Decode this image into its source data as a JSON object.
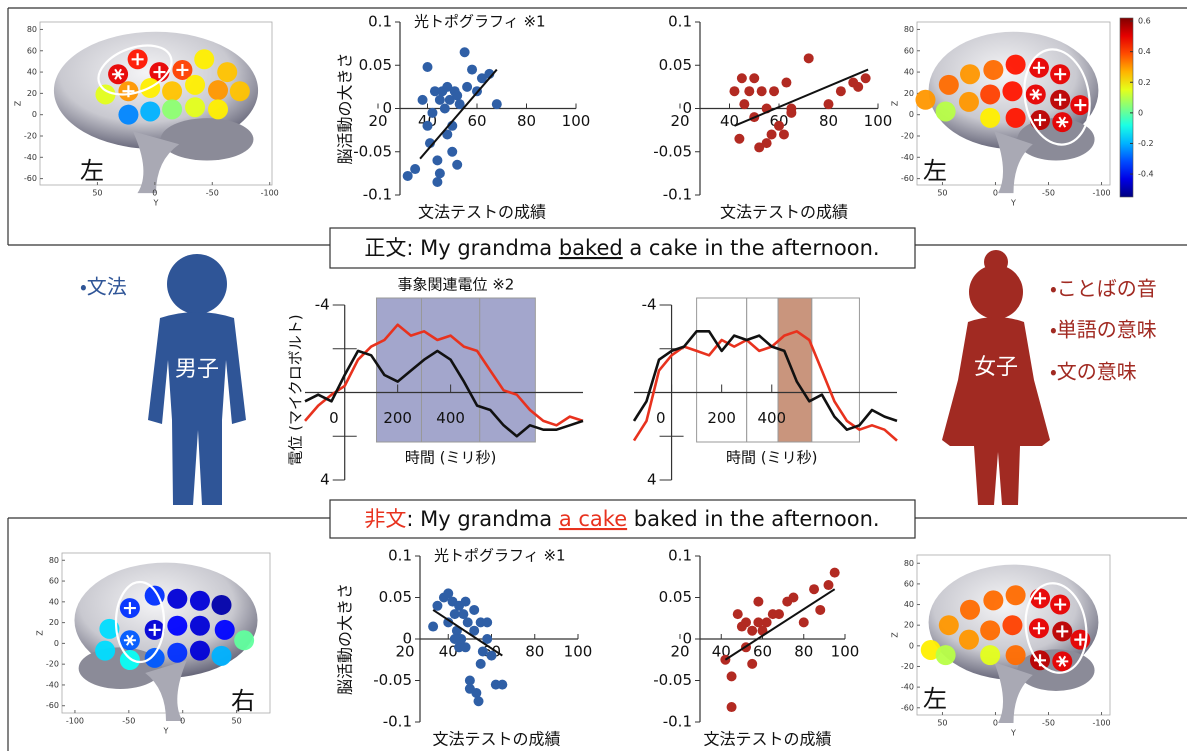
{
  "chart_data": [
    {
      "type": "brainmap",
      "xlabel": "Y",
      "ylabel": "Z",
      "side_label": "左",
      "xlim": [
        100,
        -102
      ],
      "ylim": [
        -66,
        87
      ],
      "xticks": [
        50,
        0,
        -50,
        -100
      ],
      "yticks": [
        80,
        60,
        40,
        20,
        0,
        -20,
        -40,
        -60
      ],
      "clim": [
        -0.55,
        0.62
      ],
      "x": [
        32,
        15,
        -4,
        -24,
        -43,
        -63,
        43,
        23,
        4,
        -15,
        -35,
        -55,
        -74,
        23,
        4,
        -15,
        -35,
        -55
      ],
      "y": [
        38,
        52,
        40,
        42,
        52,
        40,
        19,
        22,
        25,
        22,
        28,
        23,
        22,
        0,
        3,
        5,
        7,
        5
      ],
      "values": [
        0.5,
        0.45,
        0.5,
        0.4,
        0.2,
        0.25,
        0.15,
        0.3,
        0.2,
        0.25,
        0.2,
        0.3,
        0.25,
        -0.25,
        -0.2,
        0.05,
        0.15,
        0.2
      ]
    },
    {
      "type": "scatter",
      "title": "光トポグラフィ ※1",
      "ylabel": "脳活動の大きさ",
      "xlabel": "文法テストの成績",
      "color": "#2f5fa6",
      "xlim": [
        20,
        100
      ],
      "ylim": [
        -0.1,
        0.1
      ],
      "xticks": [
        20,
        40,
        60,
        80,
        100
      ],
      "yticks": [
        0.1,
        0.05,
        0,
        -0.05,
        -0.1
      ],
      "x": [
        32,
        35,
        38,
        40,
        41,
        42,
        43,
        44,
        45,
        45,
        46,
        47,
        48,
        48,
        49,
        50,
        50,
        51,
        52,
        53,
        55,
        56,
        58,
        60,
        62,
        65,
        68,
        40,
        44,
        52
      ],
      "values": [
        -0.078,
        -0.07,
        0.01,
        0.048,
        -0.04,
        -0.005,
        0.02,
        -0.06,
        0.01,
        -0.075,
        0.02,
        0.0,
        0.025,
        -0.03,
        0.01,
        -0.02,
        -0.05,
        0.02,
        0.015,
        0.005,
        0.065,
        0.025,
        0.045,
        0.02,
        0.035,
        0.04,
        0.005,
        -0.02,
        -0.085,
        -0.065
      ],
      "fit": {
        "x": [
          37,
          68
        ],
        "y": [
          -0.058,
          0.045
        ]
      }
    },
    {
      "type": "scatter",
      "xlabel": "文法テストの成績",
      "color": "#b22a22",
      "xlim": [
        20,
        100
      ],
      "ylim": [
        -0.1,
        0.1
      ],
      "xticks": [
        20,
        40,
        60,
        80,
        100
      ],
      "yticks": [
        0.1,
        0.05,
        0,
        -0.05,
        -0.1
      ],
      "x": [
        42,
        44,
        45,
        46,
        48,
        50,
        50,
        52,
        53,
        55,
        55,
        57,
        58,
        60,
        62,
        63,
        65,
        65,
        72,
        80,
        85,
        90,
        92,
        95
      ],
      "values": [
        0.02,
        -0.035,
        0.035,
        0.005,
        0.02,
        -0.01,
        0.035,
        -0.045,
        0.02,
        -0.04,
        0.0,
        -0.03,
        0.02,
        -0.02,
        -0.03,
        0.03,
        0.0,
        -0.005,
        0.058,
        0.005,
        0.02,
        0.03,
        0.025,
        0.035
      ],
      "fit": {
        "x": [
          42,
          96
        ],
        "y": [
          -0.02,
          0.045
        ]
      }
    },
    {
      "type": "brainmap",
      "xlabel": "Y",
      "ylabel": "Z",
      "side_label": "左",
      "xlim": [
        74,
        -108
      ],
      "ylim": [
        -66,
        87
      ],
      "xticks": [
        50,
        0,
        -50,
        -100
      ],
      "yticks": [
        80,
        60,
        40,
        20,
        0,
        -20,
        -40,
        -60
      ],
      "clim": [
        -0.55,
        0.62
      ],
      "colorbar_ticks": [
        0.6,
        0.4,
        0.2,
        0,
        -0.2,
        -0.4
      ],
      "x": [
        66,
        44,
        24,
        2,
        -19,
        -41,
        -61,
        47,
        25,
        5,
        -16,
        -38,
        -61,
        -80,
        5,
        -19,
        -42,
        -63
      ],
      "y": [
        14,
        28,
        38,
        42,
        47,
        44,
        38,
        3,
        12,
        19,
        22,
        19,
        14,
        9,
        -3,
        -3,
        -5,
        -7
      ],
      "values": [
        0.3,
        0.35,
        0.3,
        0.35,
        0.45,
        0.5,
        0.5,
        0.1,
        0.3,
        0.4,
        0.45,
        0.5,
        0.55,
        0.5,
        0.2,
        0.45,
        0.55,
        0.5
      ]
    },
    {
      "type": "line",
      "title": "事象関連電位 ※2",
      "ylabel": "電位 (マイクロボルト)",
      "xlabel": "時間 (ミリ秒)",
      "xlim": [
        -150,
        900
      ],
      "ylim": [
        -4,
        4
      ],
      "y_inverted": true,
      "xticks": [
        0,
        200,
        400
      ],
      "yticks": [
        -4,
        4
      ],
      "yminor": [
        -2,
        2
      ],
      "windows": [
        [
          120,
          290
        ],
        [
          290,
          510
        ],
        [
          510,
          720
        ]
      ],
      "highlight": [
        0,
        1,
        2
      ],
      "window_color": "#a3a6cc",
      "x": [
        -150,
        -100,
        -50,
        0,
        50,
        100,
        150,
        200,
        250,
        300,
        350,
        400,
        450,
        500,
        550,
        600,
        650,
        700,
        750,
        800,
        850,
        900
      ],
      "series": [
        {
          "color": "#e8321e",
          "values": [
            1.3,
            0.6,
            0.1,
            -0.3,
            -1.5,
            -2.1,
            -2.4,
            -3.1,
            -2.6,
            -2.8,
            -2.4,
            -2.6,
            -2.1,
            -1.9,
            -1.0,
            -0.1,
            0.1,
            0.8,
            1.3,
            1.5,
            1.1,
            1.3
          ]
        },
        {
          "color": "#111111",
          "values": [
            0.4,
            0.1,
            0.4,
            -0.8,
            -1.9,
            -1.7,
            -0.8,
            -0.5,
            -1.0,
            -1.5,
            -1.9,
            -1.5,
            -0.5,
            0.6,
            0.8,
            1.5,
            2.0,
            1.5,
            1.7,
            1.7,
            1.5,
            1.3
          ]
        }
      ]
    },
    {
      "type": "line",
      "xlabel": "時間 (ミリ秒)",
      "xlim": [
        -150,
        900
      ],
      "ylim": [
        -4,
        4
      ],
      "y_inverted": true,
      "xticks": [
        0,
        200,
        400
      ],
      "yticks": [
        -4,
        4
      ],
      "yminor": [
        -2,
        2
      ],
      "windows": [
        [
          100,
          300
        ],
        [
          300,
          425
        ],
        [
          425,
          560
        ],
        [
          560,
          750
        ]
      ],
      "highlight": [
        2
      ],
      "window_color": "#c9957d",
      "x": [
        -150,
        -100,
        -50,
        0,
        50,
        100,
        150,
        200,
        250,
        300,
        350,
        400,
        450,
        500,
        550,
        600,
        650,
        700,
        750,
        800,
        850,
        900
      ],
      "series": [
        {
          "color": "#e8321e",
          "values": [
            2.2,
            1.3,
            -1.0,
            -1.7,
            -2.1,
            -1.9,
            -1.7,
            -2.4,
            -2.1,
            -2.4,
            -1.9,
            -2.1,
            -2.6,
            -2.8,
            -2.4,
            -1.0,
            0.4,
            1.3,
            1.7,
            1.5,
            1.7,
            2.2
          ]
        },
        {
          "color": "#111111",
          "values": [
            1.3,
            0.4,
            -1.5,
            -1.9,
            -2.1,
            -2.8,
            -2.8,
            -1.9,
            -2.6,
            -2.4,
            -2.6,
            -2.1,
            -1.9,
            -0.5,
            0.4,
            0.1,
            1.1,
            1.7,
            1.5,
            0.8,
            1.1,
            1.3
          ]
        }
      ]
    },
    {
      "type": "brainmap",
      "xlabel": "Y",
      "ylabel": "Z",
      "side_label": "右",
      "xlim": [
        -112,
        81
      ],
      "ylim": [
        -67,
        87
      ],
      "xticks": [
        -100,
        -50,
        0,
        50
      ],
      "yticks": [
        80,
        60,
        40,
        20,
        0,
        -20,
        -40,
        -60
      ],
      "clim": [
        -0.55,
        0.62
      ],
      "x": [
        -68,
        -49,
        -26,
        -5,
        16,
        36,
        -72,
        -49,
        -26,
        -5,
        16,
        39,
        57,
        -49,
        -26,
        -5,
        16,
        36
      ],
      "y": [
        14,
        34,
        46,
        43,
        41,
        37,
        -7,
        3,
        13,
        17,
        17,
        13,
        3,
        -16,
        -14,
        -9,
        -7,
        -12
      ],
      "values": [
        -0.15,
        -0.35,
        -0.35,
        -0.45,
        -0.45,
        -0.5,
        -0.15,
        -0.3,
        -0.45,
        -0.4,
        -0.45,
        -0.4,
        0.0,
        -0.1,
        -0.3,
        -0.35,
        -0.45,
        -0.2
      ]
    },
    {
      "type": "scatter",
      "title": "光トポグラフィ ※1",
      "ylabel": "脳活動の大きさ",
      "xlabel": "文法テストの成績",
      "color": "#2f5fa6",
      "xlim": [
        20,
        100
      ],
      "ylim": [
        -0.1,
        0.1
      ],
      "xticks": [
        20,
        40,
        60,
        80,
        100
      ],
      "yticks": [
        0.1,
        0.05,
        0,
        -0.05,
        -0.1
      ],
      "x": [
        33,
        35,
        38,
        40,
        40,
        42,
        43,
        44,
        45,
        45,
        46,
        47,
        48,
        49,
        50,
        50,
        52,
        53,
        55,
        55,
        56,
        58,
        60,
        62,
        65,
        52,
        54,
        43,
        48,
        58
      ],
      "values": [
        0.015,
        0.04,
        0.05,
        0.055,
        0.02,
        0.045,
        0.03,
        0.01,
        0.04,
        -0.01,
        0.0,
        0.03,
        0.045,
        0.02,
        -0.05,
        -0.06,
        0.01,
        -0.065,
        0.02,
        -0.03,
        -0.015,
        0.0,
        -0.02,
        -0.055,
        -0.055,
        0.035,
        -0.075,
        0.0,
        -0.01,
        0.02
      ],
      "fit": {
        "x": [
          33,
          65
        ],
        "y": [
          0.035,
          -0.02
        ]
      }
    },
    {
      "type": "scatter",
      "xlabel": "文法テストの成績",
      "color": "#b22a22",
      "xlim": [
        20,
        100
      ],
      "ylim": [
        -0.1,
        0.1
      ],
      "xticks": [
        20,
        40,
        60,
        80,
        100
      ],
      "yticks": [
        0.1,
        0.05,
        0,
        -0.05,
        -0.1
      ],
      "x": [
        42,
        45,
        45,
        48,
        50,
        52,
        52,
        55,
        55,
        58,
        58,
        60,
        62,
        65,
        68,
        72,
        75,
        80,
        85,
        88,
        92,
        95
      ],
      "values": [
        -0.025,
        -0.082,
        -0.045,
        0.03,
        0.015,
        -0.01,
        0.02,
        0.01,
        -0.03,
        0.02,
        0.045,
        0.01,
        0.02,
        0.03,
        0.03,
        0.045,
        0.05,
        0.02,
        0.06,
        0.035,
        0.065,
        0.08
      ],
      "fit": {
        "x": [
          42,
          95
        ],
        "y": [
          -0.025,
          0.06
        ]
      }
    },
    {
      "type": "brainmap",
      "xlabel": "Y",
      "ylabel": "Z",
      "side_label": "左",
      "xlim": [
        74,
        -108
      ],
      "ylim": [
        -67,
        88
      ],
      "xticks": [
        50,
        0,
        -50,
        -100
      ],
      "yticks": [
        80,
        60,
        40,
        20,
        0,
        -20,
        -40,
        -60
      ],
      "clim": [
        -0.55,
        0.62
      ],
      "x": [
        61,
        44,
        24,
        2,
        -19,
        -42,
        -61,
        47,
        25,
        5,
        -16,
        -41,
        -63,
        -80,
        5,
        -19,
        -42,
        -63
      ],
      "y": [
        -4,
        20,
        35,
        44,
        49,
        46,
        40,
        -9,
        6,
        15,
        20,
        17,
        14,
        6,
        -9,
        -9,
        -14,
        -15
      ],
      "values": [
        0.2,
        0.3,
        0.35,
        0.35,
        0.35,
        0.5,
        0.5,
        0.1,
        0.3,
        0.35,
        0.4,
        0.5,
        0.55,
        0.5,
        0.15,
        0.35,
        0.55,
        0.5
      ]
    }
  ],
  "sentences": [
    {
      "label": "正文",
      "parts": [
        ": My grandma ",
        "baked",
        " a cake in the afternoon."
      ]
    },
    {
      "label": "非文",
      "parts": [
        ": My grandma ",
        "a cake",
        " baked in the afternoon."
      ]
    }
  ],
  "boy": {
    "label": "男子",
    "notes": [
      "・文法"
    ]
  },
  "girl": {
    "label": "女子",
    "notes": [
      "・ことばの音",
      "・単語の意味",
      "・文の意味"
    ]
  }
}
